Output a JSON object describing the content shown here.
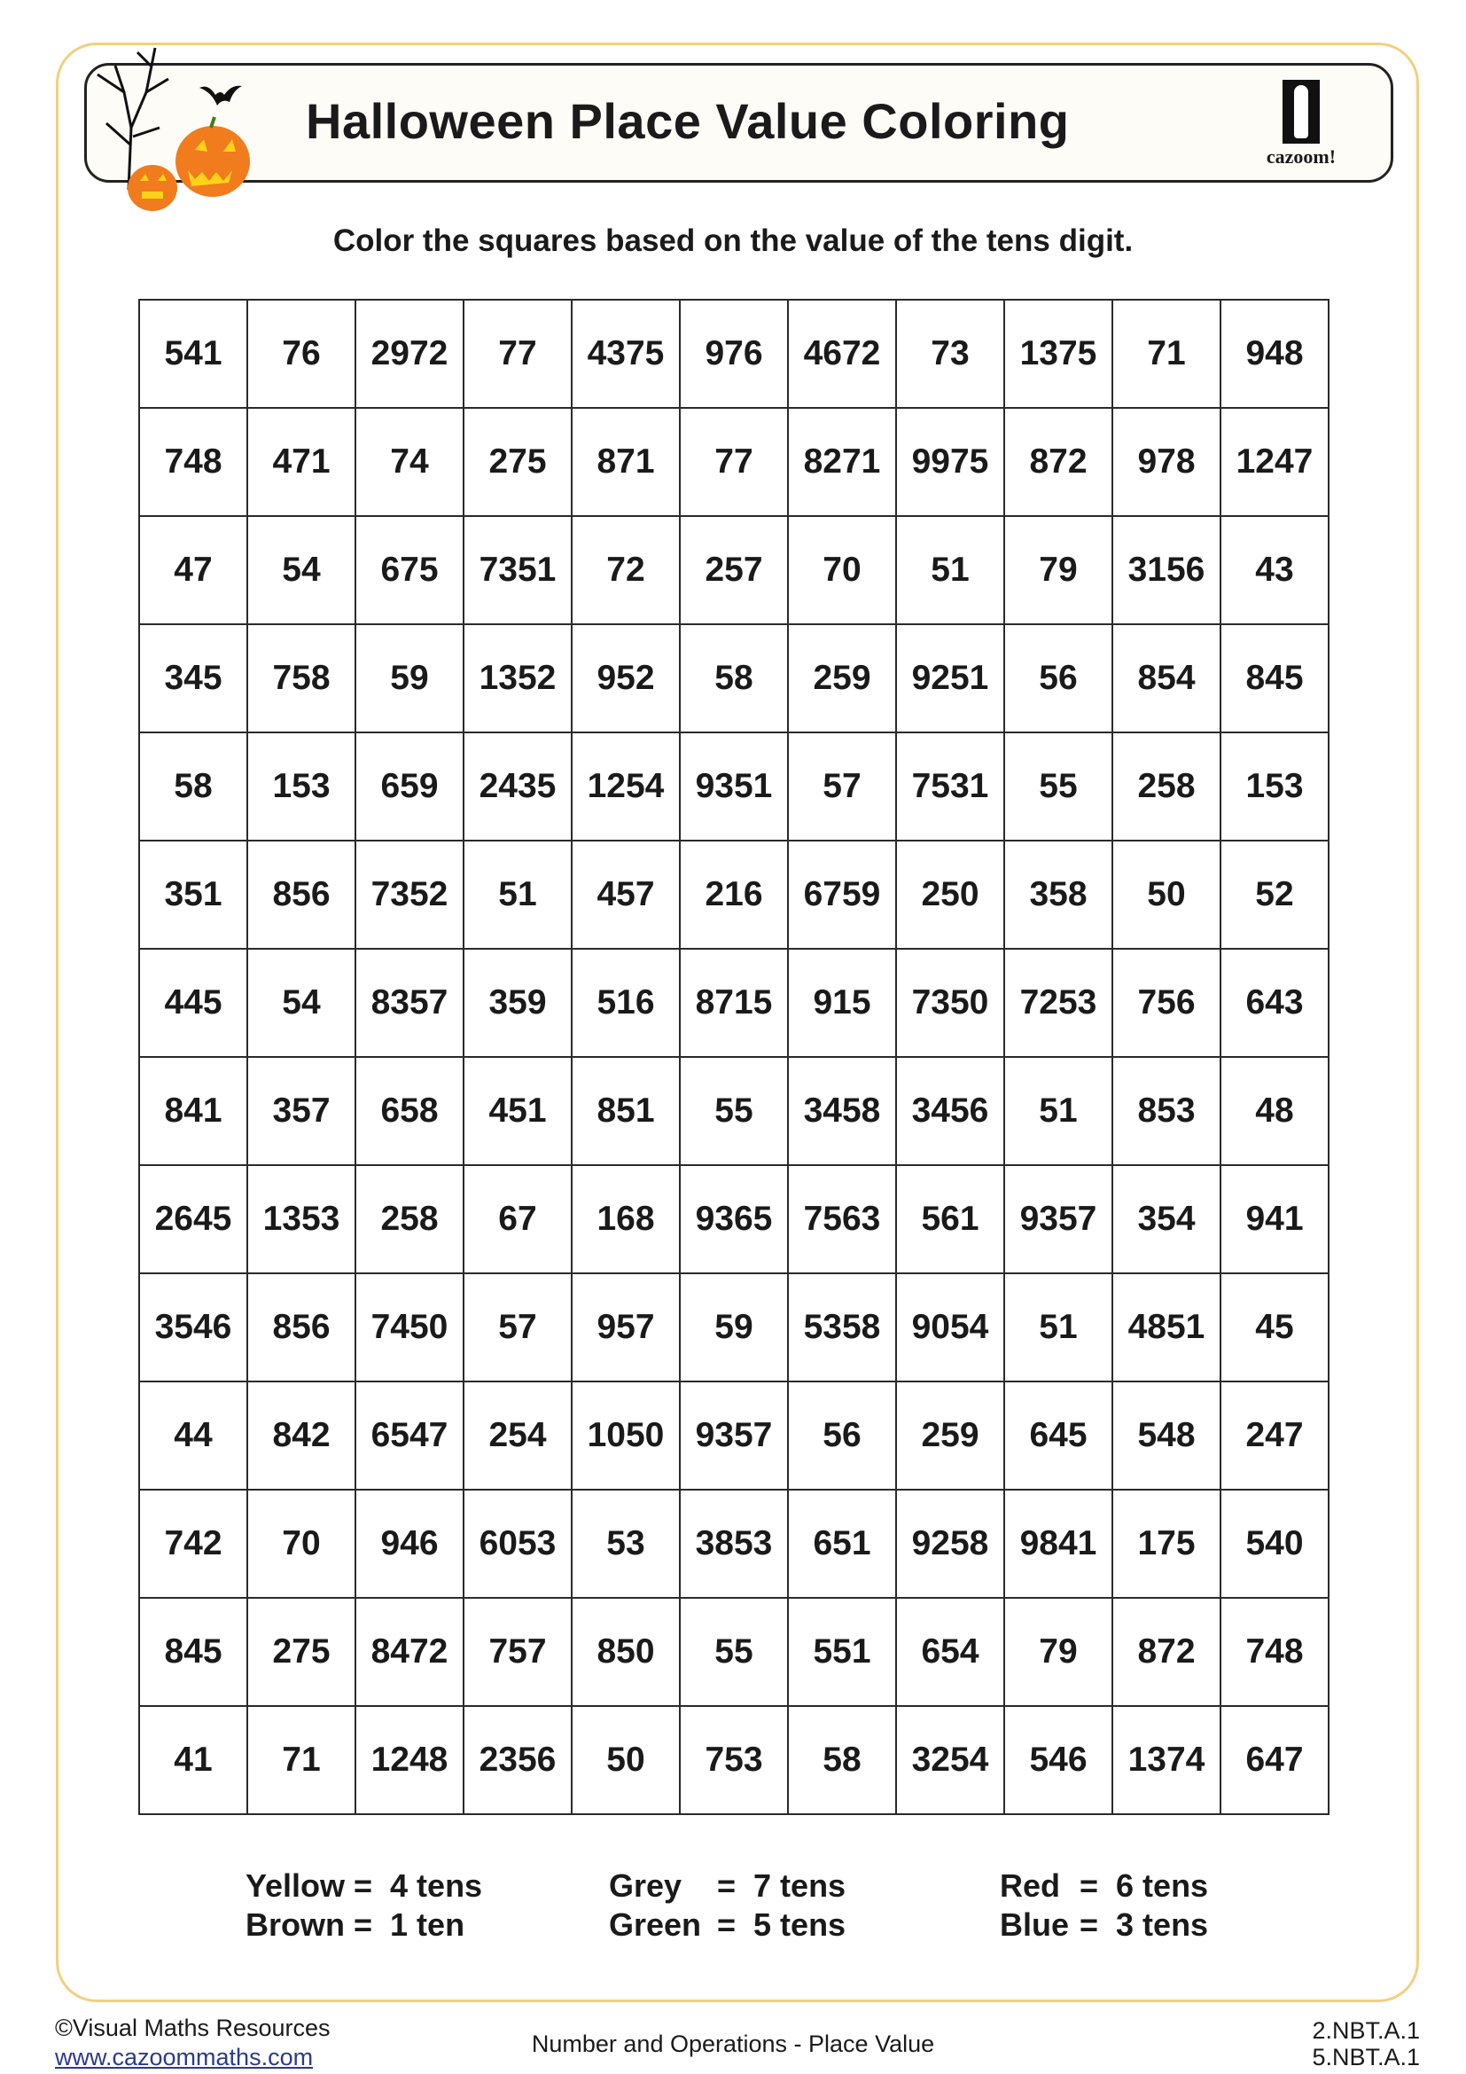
{
  "header": {
    "title": "Halloween Place Value Coloring",
    "logo_text": "cazoom!"
  },
  "instructions": "Color the squares based on the value of the tens digit.",
  "grid": {
    "rows": [
      [
        "541",
        "76",
        "2972",
        "77",
        "4375",
        "976",
        "4672",
        "73",
        "1375",
        "71",
        "948"
      ],
      [
        "748",
        "471",
        "74",
        "275",
        "871",
        "77",
        "8271",
        "9975",
        "872",
        "978",
        "1247"
      ],
      [
        "47",
        "54",
        "675",
        "7351",
        "72",
        "257",
        "70",
        "51",
        "79",
        "3156",
        "43"
      ],
      [
        "345",
        "758",
        "59",
        "1352",
        "952",
        "58",
        "259",
        "9251",
        "56",
        "854",
        "845"
      ],
      [
        "58",
        "153",
        "659",
        "2435",
        "1254",
        "9351",
        "57",
        "7531",
        "55",
        "258",
        "153"
      ],
      [
        "351",
        "856",
        "7352",
        "51",
        "457",
        "216",
        "6759",
        "250",
        "358",
        "50",
        "52"
      ],
      [
        "445",
        "54",
        "8357",
        "359",
        "516",
        "8715",
        "915",
        "7350",
        "7253",
        "756",
        "643"
      ],
      [
        "841",
        "357",
        "658",
        "451",
        "851",
        "55",
        "3458",
        "3456",
        "51",
        "853",
        "48"
      ],
      [
        "2645",
        "1353",
        "258",
        "67",
        "168",
        "9365",
        "7563",
        "561",
        "9357",
        "354",
        "941"
      ],
      [
        "3546",
        "856",
        "7450",
        "57",
        "957",
        "59",
        "5358",
        "9054",
        "51",
        "4851",
        "45"
      ],
      [
        "44",
        "842",
        "6547",
        "254",
        "1050",
        "9357",
        "56",
        "259",
        "645",
        "548",
        "247"
      ],
      [
        "742",
        "70",
        "946",
        "6053",
        "53",
        "3853",
        "651",
        "9258",
        "9841",
        "175",
        "540"
      ],
      [
        "845",
        "275",
        "8472",
        "757",
        "850",
        "55",
        "551",
        "654",
        "79",
        "872",
        "748"
      ],
      [
        "41",
        "71",
        "1248",
        "2356",
        "50",
        "753",
        "58",
        "3254",
        "546",
        "1374",
        "647"
      ]
    ]
  },
  "legend": [
    [
      {
        "color": "Yellow",
        "value": "4 tens"
      },
      {
        "color": "Brown",
        "value": "1 ten"
      }
    ],
    [
      {
        "color": "Grey",
        "value": "7 tens"
      },
      {
        "color": "Green",
        "value": "5 tens"
      }
    ],
    [
      {
        "color": "Red",
        "value": "6 tens"
      },
      {
        "color": "Blue",
        "value": "3 tens"
      }
    ]
  ],
  "footer": {
    "copyright": "©Visual Maths Resources",
    "website": "www.cazoommaths.com",
    "topic": "Number and Operations - Place Value",
    "standards": [
      "2.NBT.A.1",
      "5.NBT.A.1"
    ]
  },
  "colors": {
    "frame": "#f3cf7e",
    "pumpkin": "#f07c1e",
    "link": "#2b3a8f"
  }
}
